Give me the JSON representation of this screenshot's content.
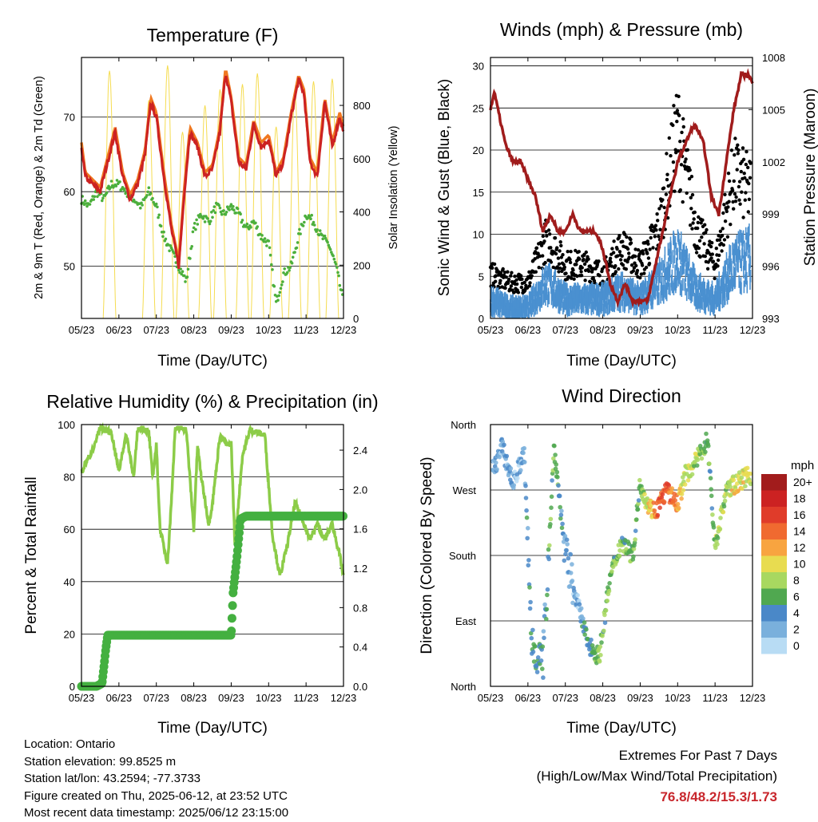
{
  "charts": {
    "temperature": {
      "title": "Temperature (F)",
      "ylabel": "2m & 9m T (Red, Orange) & 2m Td (Green)",
      "y2label": "Solar Insolation (Yellow)",
      "xlabel": "Time (Day/UTC)"
    },
    "winds": {
      "title": "Winds (mph) & Pressure (mb)",
      "ylabel": "Sonic Wind & Gust (Blue, Black)",
      "y2label": "Station Pressure (Maroon)",
      "xlabel": "Time (Day/UTC)"
    },
    "humidity": {
      "title": "Relative Humidity (%) & Precipitation (in)",
      "ylabel": "Percent & Total Rainfall",
      "xlabel": "Time (Day/UTC)"
    },
    "direction": {
      "title": "Wind Direction",
      "ylabel": "Direction (Colored By Speed)",
      "xlabel": "Time (Day/UTC)",
      "legend_title": "mph"
    }
  },
  "info": {
    "location": "Location: Ontario",
    "elevation": "Station elevation: 99.8525 m",
    "latlon": "Station lat/lon: 43.2594; -77.3733",
    "created": "Figure created on Thu, 2025-06-12, at 23:52 UTC",
    "recent": "Most recent data timestamp: 2025/06/12 23:15:00"
  },
  "extremes": {
    "line1": "Extremes For Past 7 Days",
    "line2": "(High/Low/Max Wind/Total Precipitation)",
    "values": "76.8/48.2/15.3/1.73"
  },
  "chart_data": [
    {
      "type": "line",
      "title": "Temperature (F)",
      "x_ticks": [
        "05/23",
        "06/23",
        "07/23",
        "08/23",
        "09/23",
        "10/23",
        "11/23",
        "12/23"
      ],
      "xlim_days": [
        0,
        7
      ],
      "ylim": [
        43,
        78
      ],
      "y_ticks": [
        50,
        60,
        70
      ],
      "y2lim": [
        0,
        980
      ],
      "y2_ticks": [
        0,
        200,
        400,
        600,
        800
      ],
      "colors": {
        "t2m": "#cc2222",
        "t9m": "#f07820",
        "td": "#4caf3c",
        "solar": "#f5dc50"
      },
      "series": [
        {
          "name": "2m T",
          "x": [
            0,
            0.1,
            0.3,
            0.5,
            0.7,
            0.9,
            1.0,
            1.1,
            1.3,
            1.5,
            1.7,
            1.85,
            2.0,
            2.2,
            2.4,
            2.6,
            2.75,
            2.9,
            3.1,
            3.3,
            3.5,
            3.7,
            3.85,
            4.0,
            4.2,
            4.4,
            4.6,
            4.8,
            5.0,
            5.2,
            5.4,
            5.6,
            5.8,
            5.95,
            6.1,
            6.3,
            6.5,
            6.7,
            6.9,
            7.0
          ],
          "y": [
            66,
            62,
            61,
            60,
            64,
            68,
            65,
            62,
            59,
            61,
            65,
            72,
            70,
            62,
            55,
            50,
            60,
            68,
            66,
            62,
            63,
            68,
            76,
            72,
            64,
            63,
            69,
            66,
            67,
            62,
            64,
            70,
            75,
            73,
            64,
            62,
            72,
            66,
            70,
            68
          ]
        },
        {
          "name": "9m T",
          "x": [
            0,
            0.5,
            1.0,
            1.5,
            2.0,
            2.5,
            3.0,
            3.5,
            4.0,
            4.5,
            5.0,
            5.5,
            6.0,
            6.5,
            7.0
          ],
          "y": [
            65,
            60,
            63,
            61,
            69,
            52,
            67,
            62,
            70,
            64,
            66,
            63,
            65,
            70,
            68
          ]
        },
        {
          "name": "2m Td",
          "x": [
            0,
            0.2,
            0.4,
            0.6,
            0.8,
            1.0,
            1.2,
            1.4,
            1.6,
            1.8,
            2.0,
            2.2,
            2.4,
            2.6,
            2.8,
            3.0,
            3.2,
            3.4,
            3.6,
            3.8,
            4.0,
            4.2,
            4.4,
            4.6,
            4.8,
            5.0,
            5.2,
            5.4,
            5.6,
            5.8,
            6.0,
            6.2,
            6.4,
            6.6,
            6.8,
            7.0
          ],
          "y": [
            59,
            58,
            60,
            59,
            61,
            61,
            60,
            59,
            58,
            60,
            58,
            54,
            52,
            50,
            48,
            55,
            57,
            56,
            58,
            57,
            58,
            57,
            55,
            56,
            54,
            53,
            45,
            49,
            50,
            54,
            57,
            56,
            54,
            53,
            50,
            45
          ]
        },
        {
          "name": "Solar Insolation",
          "x_peaks": [
            0.75,
            1.8,
            2.3,
            2.7,
            3.3,
            3.7,
            4.3,
            4.7,
            5.2,
            5.7,
            6.2,
            6.7
          ],
          "y_peaks": [
            930,
            820,
            950,
            700,
            800,
            860,
            880,
            920,
            720,
            850,
            890,
            900
          ]
        }
      ]
    },
    {
      "type": "scatter",
      "title": "Winds (mph) & Pressure (mb)",
      "x_ticks": [
        "05/23",
        "06/23",
        "07/23",
        "08/23",
        "09/23",
        "10/23",
        "11/23",
        "12/23"
      ],
      "xlim_days": [
        0,
        7
      ],
      "ylim": [
        0,
        31
      ],
      "y_ticks": [
        0,
        5,
        10,
        15,
        20,
        25,
        30
      ],
      "y2lim": [
        993,
        1008
      ],
      "y2_ticks": [
        993,
        996,
        999,
        1002,
        1005,
        1008
      ],
      "colors": {
        "wind": "#4a90d0",
        "gust": "#000000",
        "pressure": "#a01c1c"
      },
      "series": [
        {
          "name": "Sonic Wind",
          "x": [
            0,
            0.5,
            1.0,
            1.5,
            2.0,
            2.5,
            3.0,
            3.5,
            4.0,
            4.5,
            5.0,
            5.5,
            6.0,
            6.5,
            7.0
          ],
          "y": [
            3,
            2,
            2,
            5,
            3,
            3,
            3,
            4,
            3,
            5,
            8,
            4,
            3,
            7,
            8
          ]
        },
        {
          "name": "Gust",
          "x": [
            0,
            0.5,
            1.0,
            1.5,
            2.0,
            2.5,
            3.0,
            3.5,
            4.0,
            4.5,
            5.0,
            5.5,
            6.0,
            6.5,
            7.0
          ],
          "y": [
            5,
            4,
            4,
            9,
            6,
            6,
            5,
            8,
            6,
            10,
            21,
            10,
            6,
            16,
            14
          ]
        },
        {
          "name": "Station Pressure",
          "x": [
            0,
            0.1,
            0.2,
            0.4,
            0.6,
            0.8,
            1.0,
            1.2,
            1.4,
            1.6,
            1.8,
            2.0,
            2.2,
            2.4,
            2.6,
            2.8,
            3.0,
            3.2,
            3.4,
            3.6,
            3.8,
            4.0,
            4.2,
            4.4,
            4.6,
            4.8,
            5.0,
            5.2,
            5.4,
            5.5,
            5.7,
            5.9,
            6.1,
            6.3,
            6.5,
            6.7,
            6.9,
            7.0
          ],
          "y": [
            1005,
            1006,
            1005,
            1003,
            1002,
            1002,
            1001,
            1000,
            998,
            999,
            998,
            998,
            999,
            998,
            998,
            998,
            997,
            995,
            994,
            995,
            994,
            994,
            994,
            996,
            998,
            1000,
            1002,
            1003,
            1004,
            1004,
            1003,
            1000,
            999,
            1002,
            1005,
            1007,
            1007,
            1006.5
          ]
        }
      ]
    },
    {
      "type": "line",
      "title": "Relative Humidity (%) & Precipitation (in)",
      "x_ticks": [
        "05/23",
        "06/23",
        "07/23",
        "08/23",
        "09/23",
        "10/23",
        "11/23",
        "12/23"
      ],
      "xlim_days": [
        0,
        7
      ],
      "ylim": [
        0,
        100
      ],
      "y_ticks": [
        0,
        20,
        40,
        60,
        80,
        100
      ],
      "y2lim": [
        0,
        2.66
      ],
      "y2_ticks": [
        0.0,
        0.4,
        0.8,
        1.2,
        1.6,
        2.0,
        2.4
      ],
      "colors": {
        "rh": "#8ccc48",
        "precip": "#44b040"
      },
      "series": [
        {
          "name": "Relative Humidity",
          "x": [
            0,
            0.1,
            0.3,
            0.5,
            0.6,
            0.8,
            1.0,
            1.1,
            1.2,
            1.3,
            1.4,
            1.5,
            1.6,
            1.8,
            1.9,
            2.0,
            2.1,
            2.3,
            2.4,
            2.5,
            2.6,
            2.8,
            3.0,
            3.1,
            3.2,
            3.4,
            3.5,
            3.7,
            3.9,
            4.0,
            4.1,
            4.3,
            4.5,
            4.7,
            4.9,
            5.1,
            5.3,
            5.5,
            5.7,
            5.9,
            6.1,
            6.3,
            6.5,
            6.7,
            6.9,
            7.0
          ],
          "y": [
            82,
            85,
            90,
            99,
            98,
            97,
            82,
            90,
            96,
            88,
            80,
            98,
            99,
            97,
            80,
            92,
            60,
            47,
            70,
            98,
            99,
            98,
            60,
            92,
            80,
            62,
            70,
            96,
            92,
            93,
            54,
            88,
            98,
            97,
            96,
            58,
            42,
            54,
            70,
            64,
            56,
            62,
            56,
            62,
            50,
            42
          ]
        },
        {
          "name": "Total Rainfall",
          "x": [
            0,
            0.4,
            0.55,
            0.6,
            0.65,
            0.7,
            0.8,
            1.0,
            2.0,
            3.0,
            3.8,
            4.0,
            4.05,
            4.15,
            4.25,
            4.4,
            5.0,
            6.0,
            7.0
          ],
          "y": [
            0,
            0,
            0.03,
            0.2,
            0.38,
            0.52,
            0.52,
            0.52,
            0.52,
            0.52,
            0.52,
            0.52,
            0.95,
            1.3,
            1.7,
            1.73,
            1.73,
            1.73,
            1.73
          ]
        }
      ]
    },
    {
      "type": "scatter",
      "title": "Wind Direction",
      "x_ticks": [
        "05/23",
        "06/23",
        "07/23",
        "08/23",
        "09/23",
        "10/23",
        "11/23",
        "12/23"
      ],
      "xlim_days": [
        0,
        7
      ],
      "y_ticks": [
        "North",
        "East",
        "South",
        "West",
        "North"
      ],
      "ylim_deg": [
        0,
        360
      ],
      "legend": {
        "title": "mph",
        "labels": [
          "20+",
          "18",
          "16",
          "14",
          "12",
          "10",
          "8",
          "6",
          "4",
          "2",
          "0"
        ],
        "colors": [
          "#a21c1c",
          "#cc2222",
          "#e03c2a",
          "#f06a30",
          "#f8a440",
          "#e8dc50",
          "#a8d860",
          "#50a850",
          "#4a88c8",
          "#7ab0dc",
          "#b8dcf4"
        ]
      },
      "series": [
        {
          "name": "Direction",
          "x": [
            0.1,
            0.3,
            0.6,
            0.9,
            1.1,
            1.4,
            1.7,
            2.0,
            2.3,
            2.6,
            2.9,
            3.2,
            3.5,
            3.8,
            4.0,
            4.2,
            4.4,
            4.7,
            5.0,
            5.2,
            5.5,
            5.8,
            6.0,
            6.3,
            6.6,
            6.9
          ],
          "y": [
            300,
            330,
            280,
            320,
            60,
            30,
            330,
            180,
            120,
            60,
            40,
            150,
            200,
            180,
            280,
            250,
            240,
            270,
            250,
            290,
            310,
            340,
            190,
            270,
            280,
            290
          ],
          "speed": [
            2,
            3,
            2,
            3,
            5,
            4,
            7,
            3,
            2,
            5,
            7,
            6,
            7,
            6,
            7,
            9,
            13,
            15,
            12,
            8,
            9,
            5,
            7,
            8,
            10,
            9
          ]
        }
      ]
    }
  ]
}
